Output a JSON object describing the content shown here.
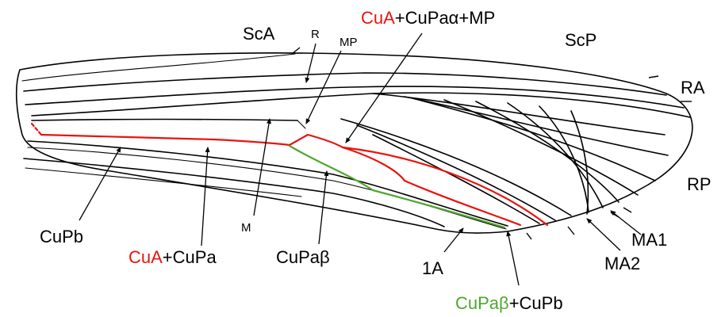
{
  "colors": {
    "red": "#e8140f",
    "green": "#4ea72e",
    "black": "#000000"
  },
  "labels": {
    "sca": "ScA",
    "r": "R",
    "mp": "MP",
    "cua_top_red": "CuA",
    "cua_top_rest": "+CuPaα+MP",
    "scp": "ScP",
    "ra": "RA",
    "rp": "RP",
    "ma1": "MA1",
    "ma2": "MA2",
    "cupb": "CuPb",
    "cua_bottom_red": "CuA",
    "cua_bottom_rest": "+CuPa",
    "m": "M",
    "cupabeta": "CuPaβ",
    "one_a": "1A",
    "cupabeta_cupb_green": "CuPaβ",
    "cupabeta_cupb_rest": "+CuPb"
  }
}
